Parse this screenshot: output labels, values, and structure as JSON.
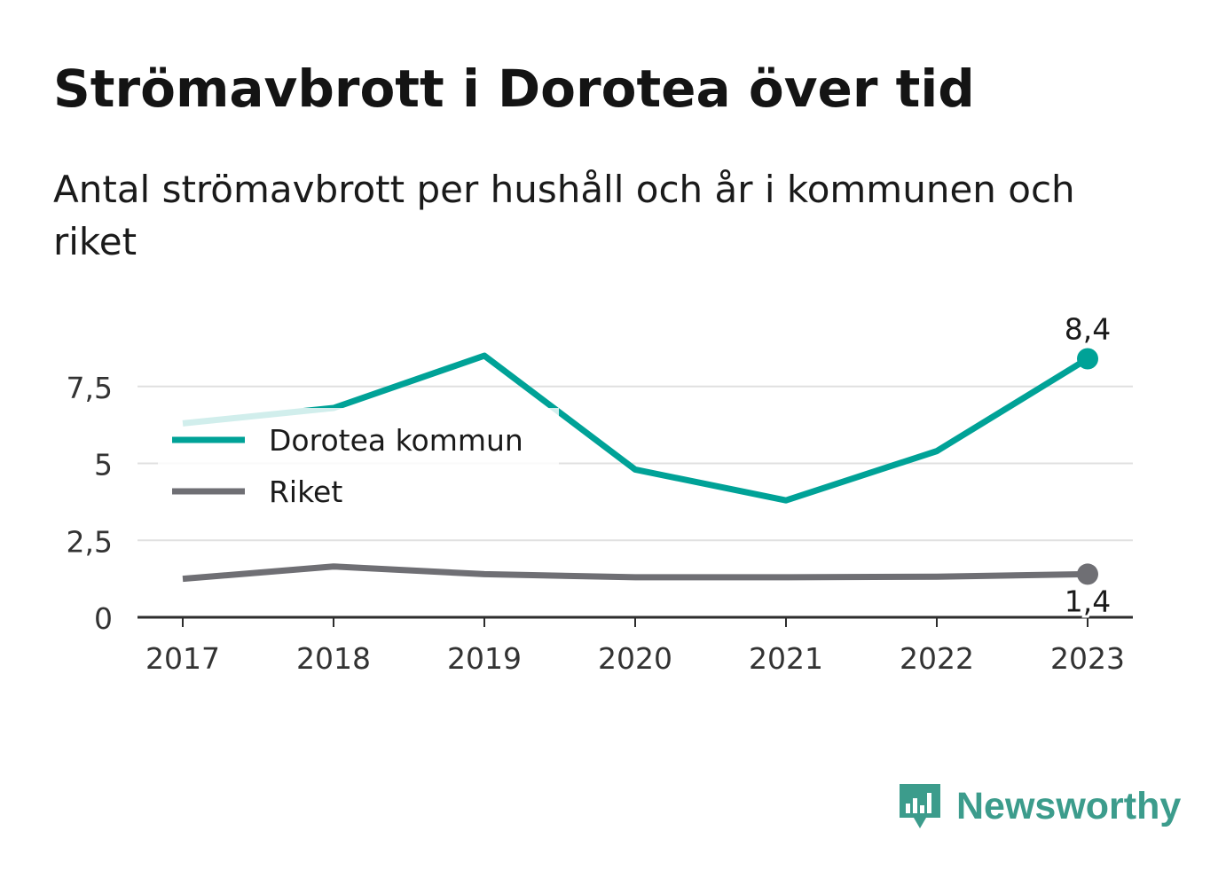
{
  "header": {
    "title": "Strömavbrott i Dorotea över tid",
    "subtitle": "Antal strömavbrott per hushåll och år i kommunen och riket"
  },
  "chart_data": {
    "type": "line",
    "x": [
      "2017",
      "2018",
      "2019",
      "2020",
      "2021",
      "2022",
      "2023"
    ],
    "series": [
      {
        "name": "Dorotea kommun",
        "color": "#00a297",
        "values": [
          6.3,
          6.8,
          8.5,
          4.8,
          3.8,
          5.4,
          8.4
        ],
        "end_label": "8,4"
      },
      {
        "name": "Riket",
        "color": "#6f6f74",
        "values": [
          1.25,
          1.65,
          1.4,
          1.3,
          1.3,
          1.32,
          1.4
        ],
        "end_label": "1,4"
      }
    ],
    "ylim": [
      0,
      9
    ],
    "y_ticks": [
      0,
      2.5,
      5,
      7.5
    ],
    "y_tick_labels": [
      "0",
      "2,5",
      "5",
      "7,5"
    ],
    "grid": true,
    "legend": "top-left"
  },
  "brand": {
    "name": "Newsworthy",
    "icon": "newsworthy-logo-icon",
    "color": "#3c9c8c"
  }
}
